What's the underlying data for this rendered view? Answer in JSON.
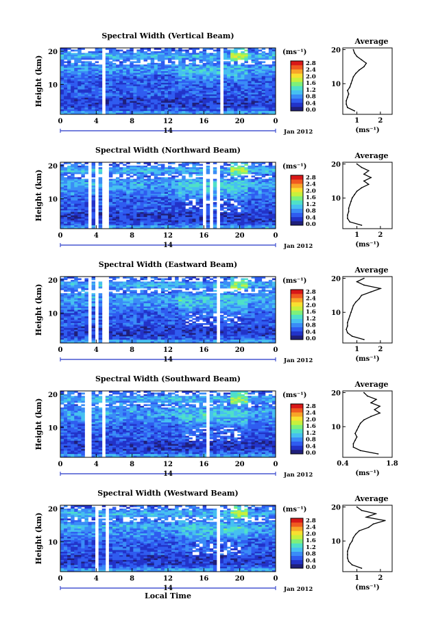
{
  "chart_data": [
    {
      "type": "heatmap",
      "title": "Spectral Width (Vertical Beam)",
      "ylabel": "Height (km)",
      "xticks": [
        "0",
        "4",
        "8",
        "12",
        "16",
        "20",
        "0"
      ],
      "yticks": [
        "10",
        "20"
      ],
      "date_center": "14",
      "date_label": "Jan 2012",
      "colorbar_unit": "(ms⁻¹)",
      "colorbar_ticks": [
        "0.0",
        "0.4",
        "0.8",
        "1.2",
        "1.6",
        "2.0",
        "2.4",
        "2.8"
      ],
      "gaps_hours": [
        [
          3.3,
          3.5
        ],
        [
          4.6,
          5.0
        ],
        [
          5.4,
          5.6
        ],
        [
          17.7,
          18.0
        ],
        [
          22.4,
          22.5
        ]
      ],
      "profile": {
        "title": "Average",
        "xlabel": "(ms⁻¹)",
        "xticks": [
          "1",
          "2"
        ],
        "xlim": [
          0.4,
          2.5
        ],
        "yticks": [
          "10",
          "20"
        ],
        "heights": [
          2,
          3,
          4,
          5,
          6,
          7,
          8,
          9,
          10,
          11,
          12,
          13,
          14,
          15,
          16,
          17,
          18,
          19,
          20
        ],
        "values": [
          0.9,
          0.6,
          0.55,
          0.55,
          0.6,
          0.65,
          0.6,
          0.7,
          0.75,
          0.8,
          0.85,
          0.95,
          1.1,
          1.3,
          1.4,
          1.2,
          1.0,
          0.9,
          0.85
        ]
      }
    },
    {
      "type": "heatmap",
      "title": "Spectral Width (Northward Beam)",
      "ylabel": "Height (km)",
      "xticks": [
        "0",
        "4",
        "8",
        "12",
        "16",
        "20",
        "0"
      ],
      "yticks": [
        "10",
        "20"
      ],
      "date_center": "14",
      "date_label": "Jan 2012",
      "colorbar_unit": "(ms⁻¹)",
      "colorbar_ticks": [
        "0.0",
        "0.4",
        "0.8",
        "1.2",
        "1.6",
        "2.0",
        "2.4",
        "2.8"
      ],
      "gaps_hours": [
        [
          3.0,
          3.4
        ],
        [
          4.0,
          4.3
        ],
        [
          4.8,
          5.4
        ],
        [
          15.8,
          16.1
        ],
        [
          16.6,
          16.9
        ],
        [
          17.4,
          17.8
        ],
        [
          20.5,
          20.7
        ],
        [
          22.5,
          22.6
        ]
      ],
      "profile": {
        "title": "Average",
        "xlabel": "(ms⁻¹)",
        "xticks": [
          "1",
          "2"
        ],
        "xlim": [
          0.4,
          2.5
        ],
        "yticks": [
          "10",
          "20"
        ],
        "heights": [
          2,
          3,
          4,
          5,
          6,
          7,
          8,
          9,
          10,
          11,
          12,
          13,
          14,
          15,
          16,
          17,
          18,
          19,
          20
        ],
        "values": [
          1.2,
          0.7,
          0.6,
          0.6,
          0.65,
          0.65,
          0.7,
          0.75,
          0.8,
          0.9,
          1.0,
          1.2,
          1.5,
          1.3,
          1.6,
          1.3,
          1.5,
          1.2,
          1.0
        ]
      }
    },
    {
      "type": "heatmap",
      "title": "Spectral Width (Eastward Beam)",
      "ylabel": "Height (km)",
      "xticks": [
        "0",
        "4",
        "8",
        "12",
        "16",
        "20",
        "0"
      ],
      "yticks": [
        "10",
        "20"
      ],
      "date_center": "14",
      "date_label": "Jan 2012",
      "colorbar_unit": "(ms⁻¹)",
      "colorbar_ticks": [
        "0.0",
        "0.4",
        "0.8",
        "1.2",
        "1.6",
        "2.0",
        "2.4",
        "2.8"
      ],
      "gaps_hours": [
        [
          3.2,
          3.6
        ],
        [
          4.0,
          4.2
        ],
        [
          4.8,
          5.4
        ],
        [
          17.5,
          17.8
        ],
        [
          20.8,
          21.0
        ],
        [
          22.5,
          22.6
        ]
      ],
      "profile": {
        "title": "Average",
        "xlabel": "(ms⁻¹)",
        "xticks": [
          "1",
          "2"
        ],
        "xlim": [
          0.4,
          2.5
        ],
        "yticks": [
          "10",
          "20"
        ],
        "heights": [
          2,
          3,
          4,
          5,
          6,
          7,
          8,
          9,
          10,
          11,
          12,
          13,
          14,
          15,
          16,
          17,
          18,
          19,
          20
        ],
        "values": [
          1.3,
          0.8,
          0.6,
          0.55,
          0.6,
          0.6,
          0.65,
          0.7,
          0.75,
          0.8,
          0.85,
          0.95,
          1.1,
          1.2,
          1.6,
          2.0,
          1.3,
          1.0,
          1.3
        ]
      }
    },
    {
      "type": "heatmap",
      "title": "Spectral Width (Southward Beam)",
      "ylabel": "Height (km)",
      "xticks": [
        "0",
        "4",
        "8",
        "12",
        "16",
        "20",
        "0"
      ],
      "yticks": [
        "10",
        "20"
      ],
      "date_center": "14",
      "date_label": "Jan 2012",
      "colorbar_unit": "(ms⁻¹)",
      "colorbar_ticks": [
        "0.0",
        "0.4",
        "0.8",
        "1.2",
        "1.6",
        "2.0",
        "2.4",
        "2.8"
      ],
      "gaps_hours": [
        [
          2.9,
          3.3
        ],
        [
          3.7,
          4.0
        ],
        [
          4.6,
          5.2
        ],
        [
          16.2,
          16.5
        ],
        [
          16.9,
          17.2
        ],
        [
          18.5,
          18.7
        ],
        [
          20.8,
          21.0
        ],
        [
          22.4,
          22.5
        ]
      ],
      "profile": {
        "title": "Average",
        "xlabel": "(ms⁻¹)",
        "xticks": [
          "0.4",
          "1.8"
        ],
        "xlim": [
          0.4,
          1.8
        ],
        "yticks": [
          "10",
          "20"
        ],
        "heights": [
          2,
          3,
          4,
          5,
          6,
          7,
          8,
          9,
          10,
          11,
          12,
          13,
          14,
          15,
          16,
          17,
          18,
          19,
          20
        ],
        "values": [
          1.4,
          0.9,
          0.7,
          0.7,
          0.75,
          0.8,
          0.75,
          0.8,
          0.85,
          0.9,
          1.0,
          1.2,
          1.45,
          1.3,
          1.45,
          1.2,
          1.35,
          1.1,
          1.0
        ]
      }
    },
    {
      "type": "heatmap",
      "title": "Spectral Width (Westward Beam)",
      "ylabel": "Height (km)",
      "xlabel": "Local Time",
      "xticks": [
        "0",
        "4",
        "8",
        "12",
        "16",
        "20",
        "0"
      ],
      "yticks": [
        "10",
        "20"
      ],
      "date_center": "14",
      "date_label": "Jan 2012",
      "colorbar_unit": "(ms⁻¹)",
      "colorbar_ticks": [
        "0.0",
        "0.4",
        "0.8",
        "1.2",
        "1.6",
        "2.0",
        "2.4",
        "2.8"
      ],
      "gaps_hours": [
        [
          3.3,
          3.6
        ],
        [
          4.0,
          4.2
        ],
        [
          4.9,
          5.4
        ],
        [
          17.6,
          17.9
        ],
        [
          22.0,
          22.2
        ]
      ],
      "profile": {
        "title": "Average",
        "xlabel": "(ms⁻¹)",
        "xticks": [
          "1",
          "2"
        ],
        "xlim": [
          0.4,
          2.5
        ],
        "yticks": [
          "10",
          "20"
        ],
        "heights": [
          2,
          3,
          4,
          5,
          6,
          7,
          8,
          9,
          10,
          11,
          12,
          13,
          14,
          15,
          16,
          17,
          18,
          19,
          20
        ],
        "values": [
          1.2,
          0.8,
          0.65,
          0.6,
          0.6,
          0.6,
          0.65,
          0.7,
          0.8,
          0.85,
          0.95,
          1.1,
          1.5,
          1.7,
          2.2,
          1.4,
          1.8,
          1.2,
          1.0
        ]
      }
    }
  ],
  "colors": {
    "colormap": [
      "#1f1f7a",
      "#2233c8",
      "#2f5cf0",
      "#3a8cf7",
      "#46c0f0",
      "#4fe0c8",
      "#7ef07a",
      "#c8f03c",
      "#f8e030",
      "#f8a428",
      "#f05a20",
      "#d81818"
    ]
  }
}
